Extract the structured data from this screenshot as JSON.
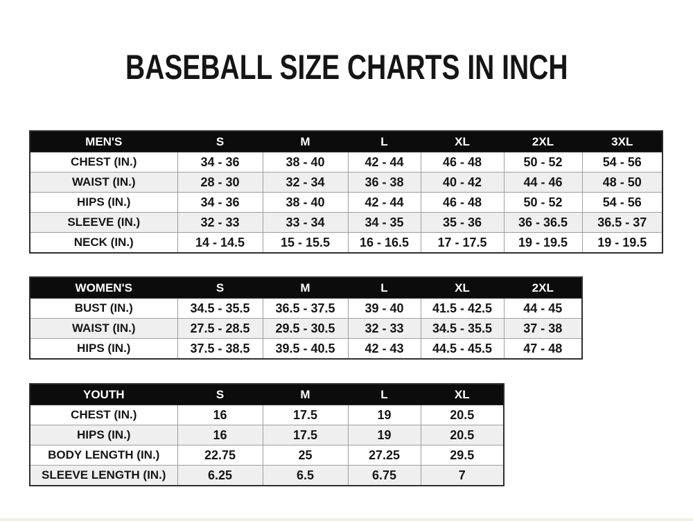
{
  "title": "BASEBALL SIZE CHARTS IN INCH",
  "colors": {
    "page_bg": "#ffffff",
    "header_bg": "#0c0c0c",
    "header_text": "#ffffff",
    "row_bg": "#ffffff",
    "row_alt_bg": "#efefef",
    "border_outer": "#2e2e2e",
    "border_inner": "#9d9d9d",
    "text": "#151515"
  },
  "chart_data": [
    {
      "type": "table",
      "title": "MEN'S",
      "columns": [
        "MEN'S",
        "S",
        "M",
        "L",
        "XL",
        "2XL",
        "3XL"
      ],
      "rows": [
        [
          "CHEST (IN.)",
          "34 - 36",
          "38 - 40",
          "42 - 44",
          "46 - 48",
          "50 - 52",
          "54 - 56"
        ],
        [
          "WAIST (IN.)",
          "28 - 30",
          "32 - 34",
          "36 - 38",
          "40 - 42",
          "44 - 46",
          "48 - 50"
        ],
        [
          "HIPS (IN.)",
          "34 - 36",
          "38 - 40",
          "42 - 44",
          "46 - 48",
          "50 - 52",
          "54 - 56"
        ],
        [
          "SLEEVE (IN.)",
          "32 - 33",
          "33 - 34",
          "34 - 35",
          "35 - 36",
          "36 - 36.5",
          "36.5 - 37"
        ],
        [
          "NECK (IN.)",
          "14 - 14.5",
          "15 - 15.5",
          "16 - 16.5",
          "17 - 17.5",
          "19 - 19.5",
          "19 - 19.5"
        ]
      ]
    },
    {
      "type": "table",
      "title": "WOMEN'S",
      "columns": [
        "WOMEN'S",
        "S",
        "M",
        "L",
        "XL",
        "2XL"
      ],
      "rows": [
        [
          "BUST (IN.)",
          "34.5 - 35.5",
          "36.5 - 37.5",
          "39 - 40",
          "41.5 - 42.5",
          "44 - 45"
        ],
        [
          "WAIST (IN.)",
          "27.5 - 28.5",
          "29.5 - 30.5",
          "32 - 33",
          "34.5 - 35.5",
          "37 - 38"
        ],
        [
          "HIPS (IN.)",
          "37.5 - 38.5",
          "39.5 - 40.5",
          "42 - 43",
          "44.5 - 45.5",
          "47 - 48"
        ]
      ]
    },
    {
      "type": "table",
      "title": "YOUTH",
      "columns": [
        "YOUTH",
        "S",
        "M",
        "L",
        "XL"
      ],
      "rows": [
        [
          "CHEST (IN.)",
          "16",
          "17.5",
          "19",
          "20.5"
        ],
        [
          "HIPS (IN.)",
          "16",
          "17.5",
          "19",
          "20.5"
        ],
        [
          "BODY LENGTH (IN.)",
          "22.75",
          "25",
          "27.25",
          "29.5"
        ],
        [
          "SLEEVE LENGTH (IN.)",
          "6.25",
          "6.5",
          "6.75",
          "7"
        ]
      ]
    }
  ]
}
